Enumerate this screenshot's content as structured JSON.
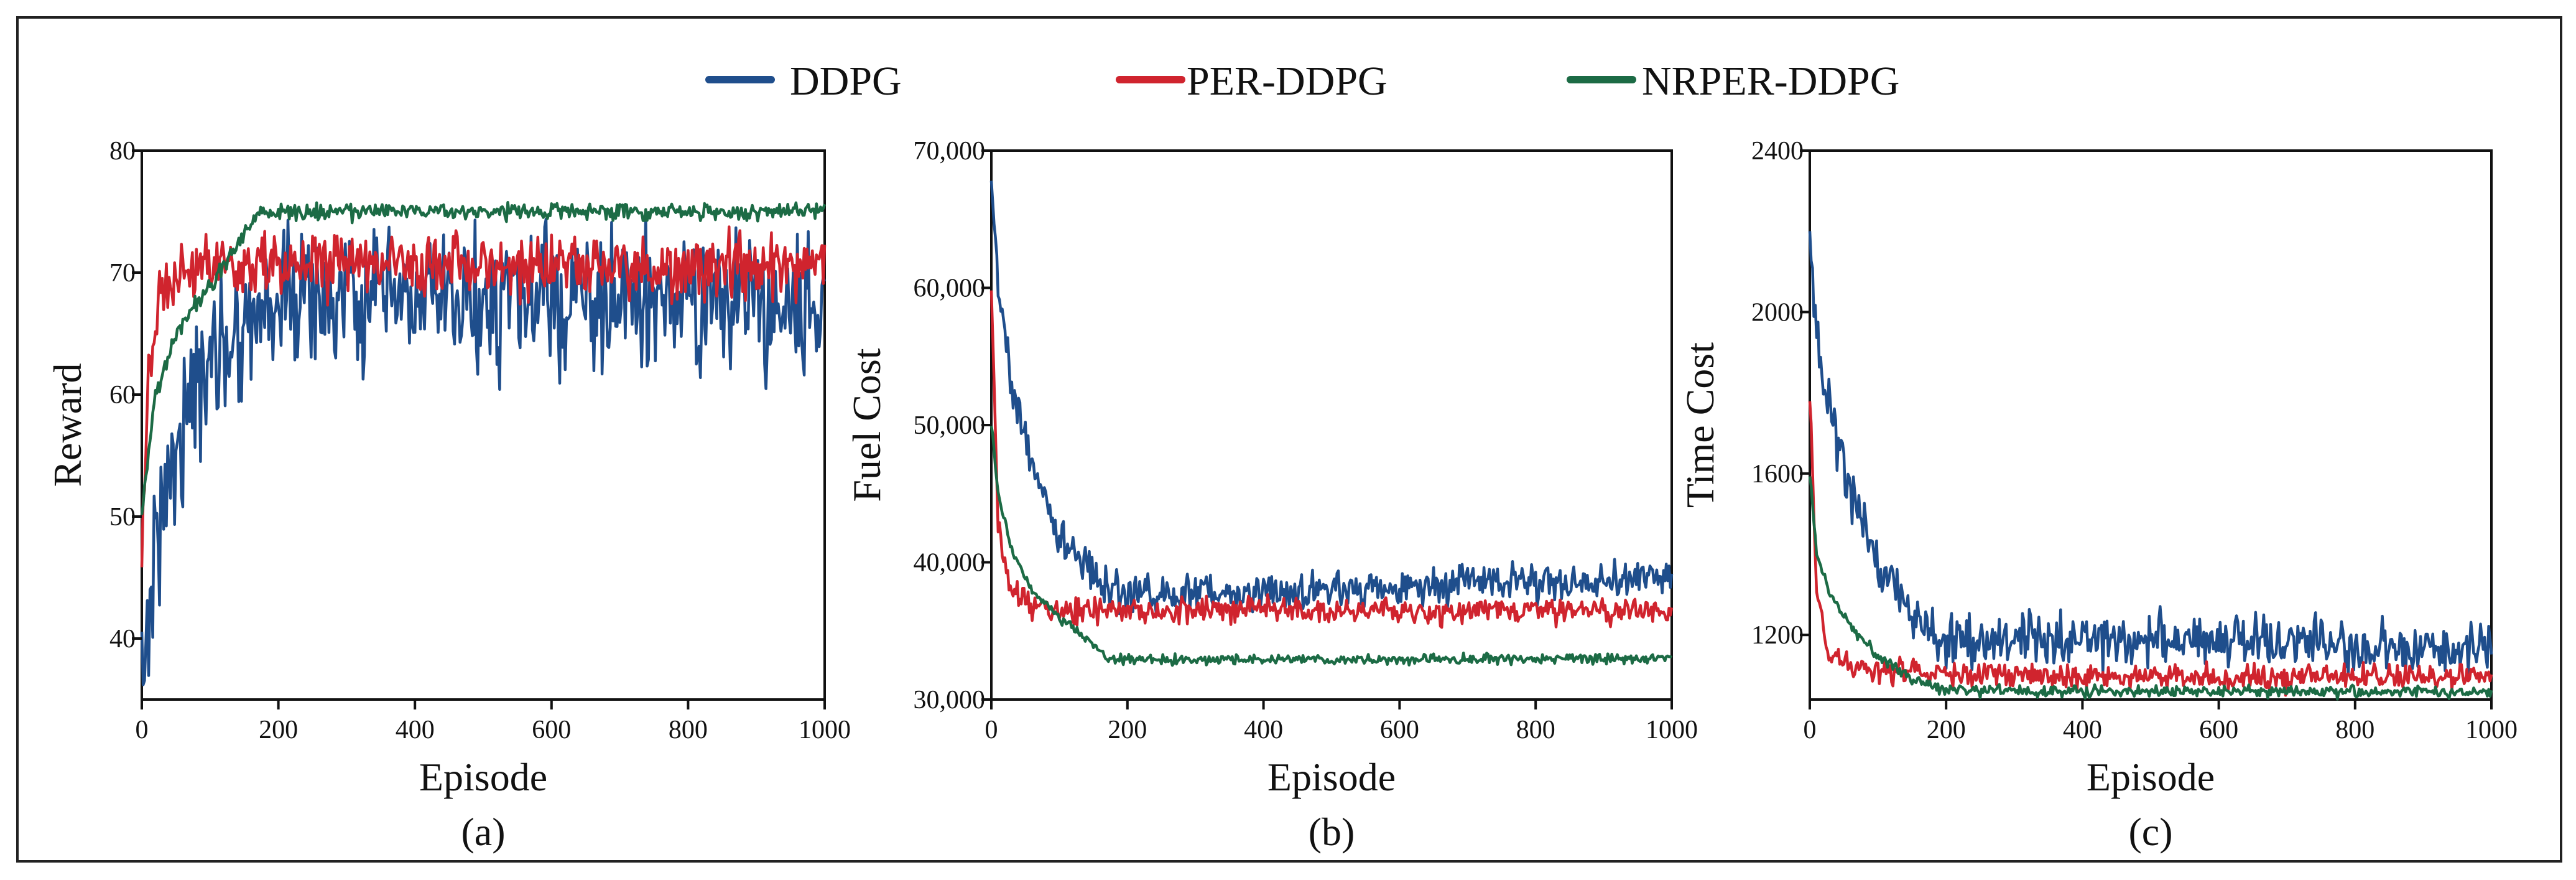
{
  "legend": [
    {
      "name": "DDPG",
      "color": "#1f4e8c"
    },
    {
      "name": "PER-DDPG",
      "color": "#d0242e"
    },
    {
      "name": "NRPER-DDPG",
      "color": "#1c6b45"
    }
  ],
  "chart_data": [
    {
      "type": "line",
      "caption": "(a)",
      "xlabel": "Episode",
      "ylabel": "Reward",
      "xlim": [
        0,
        1000
      ],
      "ylim": [
        35,
        80
      ],
      "xticks": [
        0,
        200,
        400,
        600,
        800,
        1000
      ],
      "yticks": [
        40,
        50,
        60,
        70,
        80
      ],
      "xtick_labels": [
        "0",
        "200",
        "400",
        "600",
        "800",
        "1000"
      ],
      "ytick_labels": [
        "40",
        "50",
        "60",
        "70",
        "80"
      ],
      "series": [
        {
          "name": "DDPG",
          "color": "#1f4e8c",
          "x": [
            0,
            20,
            50,
            100,
            150,
            200,
            300,
            400,
            500,
            600,
            700,
            800,
            900,
            1000
          ],
          "values": [
            36,
            48,
            56,
            63,
            66,
            68,
            67.5,
            67.5,
            67.5,
            67.5,
            67.5,
            67.5,
            67.5,
            67.5
          ],
          "noise": 4.0
        },
        {
          "name": "PER-DDPG",
          "color": "#d0242e",
          "x": [
            0,
            10,
            30,
            60,
            100,
            200,
            400,
            600,
            800,
            1000
          ],
          "values": [
            45,
            62,
            69,
            70,
            70.5,
            70.5,
            70.5,
            70.5,
            70.5,
            70.5
          ],
          "noise": 1.8
        },
        {
          "name": "NRPER-DDPG",
          "color": "#1c6b45",
          "x": [
            0,
            20,
            50,
            100,
            150,
            170,
            250,
            400,
            600,
            800,
            1000
          ],
          "values": [
            50,
            60,
            65,
            69,
            73,
            75,
            75,
            75,
            75,
            75,
            75
          ],
          "noise": 0.5
        }
      ]
    },
    {
      "type": "line",
      "caption": "(b)",
      "xlabel": "Episode",
      "ylabel": "Fuel Cost",
      "xlim": [
        0,
        1000
      ],
      "ylim": [
        30000,
        70000
      ],
      "xticks": [
        0,
        200,
        400,
        600,
        800,
        1000
      ],
      "yticks": [
        30000,
        40000,
        50000,
        60000,
        70000
      ],
      "xtick_labels": [
        "0",
        "200",
        "400",
        "600",
        "800",
        "1000"
      ],
      "ytick_labels": [
        "30,000",
        "40,000",
        "50,000",
        "60,000",
        "70,000"
      ],
      "series": [
        {
          "name": "DDPG",
          "color": "#1f4e8c",
          "x": [
            0,
            10,
            30,
            60,
            100,
            150,
            200,
            300,
            500,
            700,
            900,
            1000
          ],
          "values": [
            68000,
            60000,
            53000,
            47000,
            42000,
            39000,
            37500,
            37800,
            38000,
            38500,
            38500,
            39000
          ],
          "noise": 1000
        },
        {
          "name": "PER-DDPG",
          "color": "#d0242e",
          "x": [
            0,
            10,
            30,
            60,
            100,
            200,
            400,
            600,
            800,
            1000
          ],
          "values": [
            60000,
            42000,
            38000,
            37000,
            36500,
            36500,
            36500,
            36500,
            36500,
            36500
          ],
          "noise": 700
        },
        {
          "name": "NRPER-DDPG",
          "color": "#1c6b45",
          "x": [
            0,
            10,
            30,
            60,
            100,
            150,
            170,
            300,
            600,
            1000
          ],
          "values": [
            50000,
            45000,
            41000,
            38000,
            36000,
            34000,
            33000,
            32900,
            32900,
            33000
          ],
          "noise": 250
        }
      ]
    },
    {
      "type": "line",
      "caption": "(c)",
      "xlabel": "Episode",
      "ylabel": "Time Cost",
      "xlim": [
        0,
        1000
      ],
      "ylim": [
        1040,
        2400
      ],
      "xticks": [
        0,
        200,
        400,
        600,
        800,
        1000
      ],
      "yticks": [
        1200,
        1600,
        2000,
        2400
      ],
      "xtick_labels": [
        "0",
        "200",
        "400",
        "600",
        "800",
        "1000"
      ],
      "ytick_labels": [
        "1200",
        "1600",
        "2000",
        "2400"
      ],
      "series": [
        {
          "name": "DDPG",
          "color": "#1f4e8c",
          "x": [
            0,
            10,
            30,
            60,
            100,
            150,
            200,
            300,
            500,
            700,
            900,
            1000
          ],
          "values": [
            2200,
            1950,
            1750,
            1550,
            1380,
            1250,
            1180,
            1190,
            1190,
            1180,
            1160,
            1160
          ],
          "noise": 45
        },
        {
          "name": "PER-DDPG",
          "color": "#d0242e",
          "x": [
            0,
            10,
            30,
            60,
            100,
            200,
            400,
            600,
            800,
            1000
          ],
          "values": [
            1800,
            1300,
            1140,
            1120,
            1110,
            1100,
            1100,
            1095,
            1095,
            1095
          ],
          "noise": 22
        },
        {
          "name": "NRPER-DDPG",
          "color": "#1c6b45",
          "x": [
            0,
            10,
            30,
            60,
            100,
            150,
            200,
            300,
            600,
            1000
          ],
          "values": [
            1600,
            1400,
            1300,
            1220,
            1150,
            1090,
            1065,
            1060,
            1060,
            1060
          ],
          "noise": 10
        }
      ]
    }
  ]
}
